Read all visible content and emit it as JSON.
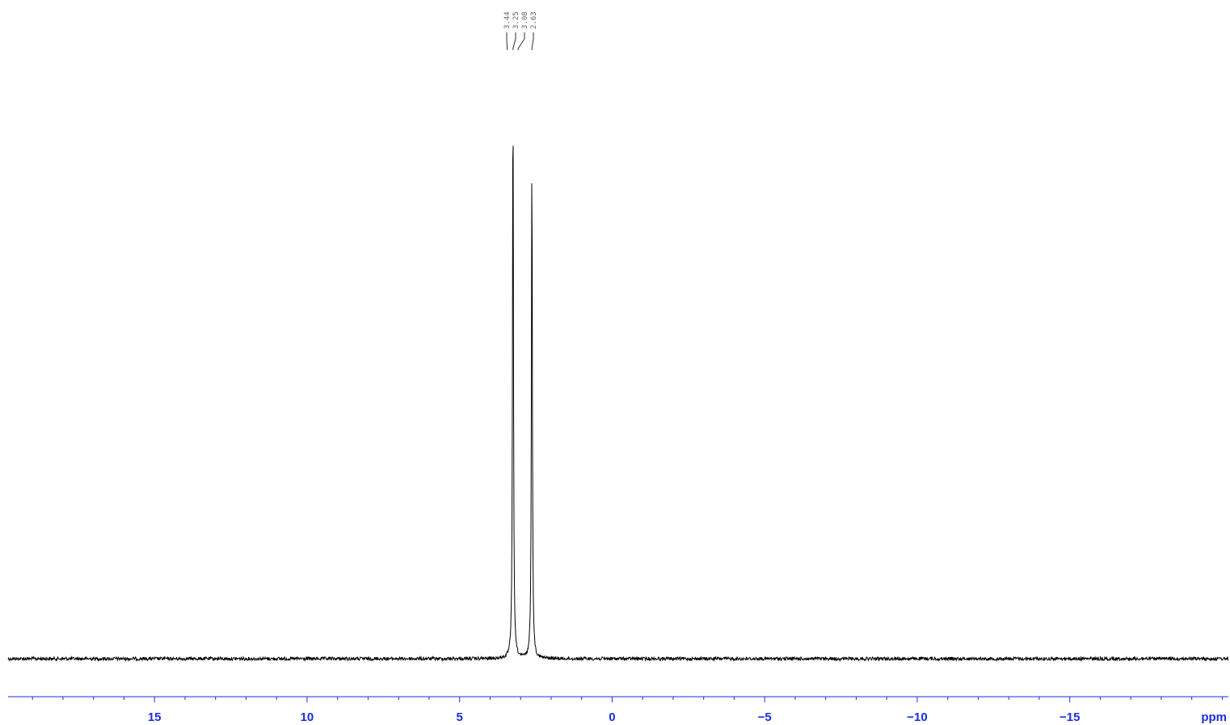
{
  "chart_data": {
    "type": "line",
    "xlabel": "ppm",
    "xlim": [
      19.8,
      -20.2
    ],
    "x_reversed": true,
    "major_ticks": [
      15,
      10,
      5,
      0,
      -5,
      -10,
      -15
    ],
    "tick_labels": [
      "15",
      "10",
      "5",
      "0",
      "−5",
      "−10",
      "−15"
    ],
    "minor_tick_step": 1,
    "peak_labels": [
      "3.44",
      "3.25",
      "3.08",
      "2.63"
    ],
    "peak_label_positions_ppm": [
      3.44,
      3.25,
      3.08,
      2.63
    ],
    "peaks": [
      {
        "ppm": 3.25,
        "relative_intensity": 1.0
      },
      {
        "ppm": 2.63,
        "relative_intensity": 0.88
      }
    ],
    "baseline_relative_intensity": 0.0,
    "grid": false,
    "axis_color": "#1a2fe0",
    "trace_color": "#000000",
    "peak_label_color": "#666666"
  }
}
